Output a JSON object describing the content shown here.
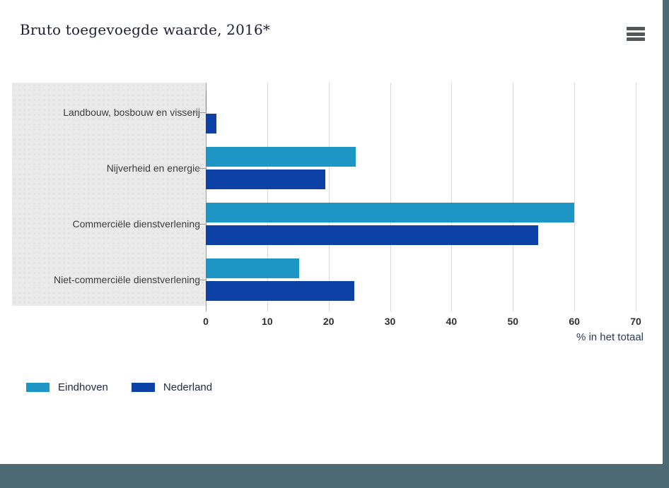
{
  "title": "Bruto toegevoegde waarde, 2016*",
  "menu": {
    "icon": "hamburger-menu-icon"
  },
  "chart_data": {
    "type": "bar",
    "orientation": "horizontal",
    "title": "Bruto toegevoegde waarde, 2016*",
    "categories": [
      "Landbouw, bosbouw en visserij",
      "Nijverheid en energie",
      "Commerciële dienstverlening",
      "Niet-commerciële dienstverlening"
    ],
    "series": [
      {
        "name": "Eindhoven",
        "color": "#1d95c5",
        "values": [
          0.1,
          24.4,
          60.0,
          15.2
        ]
      },
      {
        "name": "Nederland",
        "color": "#0d41a5",
        "values": [
          1.7,
          19.5,
          54.1,
          24.2
        ]
      }
    ],
    "xlabel": "% in het totaal",
    "xlim": [
      0,
      70
    ],
    "xticks": [
      0,
      10,
      20,
      30,
      40,
      50,
      60,
      70
    ],
    "grid": true,
    "legend_position": "bottom-left"
  },
  "colors": {
    "frame": "#4d6a74",
    "panel": "#eaeaea",
    "gridline": "#d9d9d9",
    "axis": "#9c9c9c",
    "title_text": "#1b1f33",
    "category_text": "#3d3d3d",
    "tick_text": "#2f2f2f",
    "xlabel_text": "#2a3a5f",
    "menu_icon": "#54585a",
    "series_eindhoven": "#1d95c5",
    "series_nederland": "#0d41a5"
  }
}
